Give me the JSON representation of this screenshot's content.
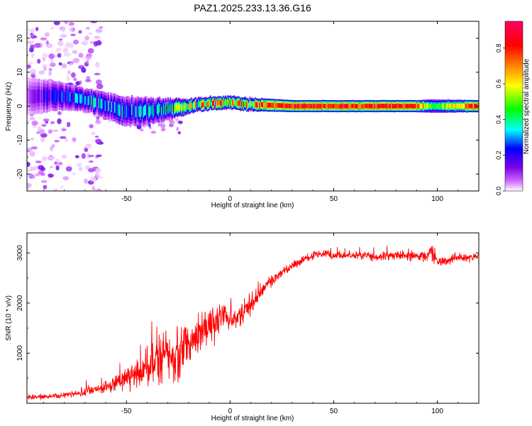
{
  "figure_title": "PAZ1.2025.233.13.36.G16",
  "chart_data": [
    {
      "type": "heatmap",
      "title": "PAZ1.2025.233.13.36.G16",
      "xlabel": "Height of straight line (km)",
      "ylabel": "Frequency (Hz)",
      "xlim": [
        -98,
        120
      ],
      "ylim": [
        -25,
        25
      ],
      "xticks": [
        -50,
        0,
        50,
        100
      ],
      "yticks": [
        -20,
        -10,
        0,
        10,
        20
      ],
      "colorbar": {
        "label": "Normalized spectral amplitude",
        "range": [
          0,
          0.95
        ],
        "ticks": [
          0.0,
          0.2,
          0.4,
          0.6,
          0.8
        ],
        "colormap": [
          "#ffffff",
          "#cc66ff",
          "#7a00e6",
          "#0000ff",
          "#00ffff",
          "#00ff00",
          "#ffff00",
          "#ff8000",
          "#ff0000",
          "#ff0066"
        ]
      },
      "ridge_profile": [
        {
          "x": -98,
          "y": 3.0,
          "amp": 0.15,
          "halfwidth": 2.5
        },
        {
          "x": -85,
          "y": 3.0,
          "amp": 0.3,
          "halfwidth": 2.0
        },
        {
          "x": -70,
          "y": 2.0,
          "amp": 0.4,
          "halfwidth": 1.5
        },
        {
          "x": -60,
          "y": 0.0,
          "amp": 0.4,
          "halfwidth": 1.8
        },
        {
          "x": -50,
          "y": -1.5,
          "amp": 0.4,
          "halfwidth": 2.0
        },
        {
          "x": -40,
          "y": -1.5,
          "amp": 0.42,
          "halfwidth": 1.8
        },
        {
          "x": -30,
          "y": -0.8,
          "amp": 0.5,
          "halfwidth": 1.4
        },
        {
          "x": -20,
          "y": 0.0,
          "amp": 0.6,
          "halfwidth": 1.0
        },
        {
          "x": -10,
          "y": 0.8,
          "amp": 0.75,
          "halfwidth": 0.9
        },
        {
          "x": 0,
          "y": 1.0,
          "amp": 0.85,
          "halfwidth": 0.9
        },
        {
          "x": 10,
          "y": 0.5,
          "amp": 0.75,
          "halfwidth": 0.9
        },
        {
          "x": 30,
          "y": 0.0,
          "amp": 0.85,
          "halfwidth": 0.8
        },
        {
          "x": 60,
          "y": 0.0,
          "amp": 0.85,
          "halfwidth": 0.8
        },
        {
          "x": 90,
          "y": 0.0,
          "amp": 0.8,
          "halfwidth": 0.8
        },
        {
          "x": 97,
          "y": 0.0,
          "amp": 0.5,
          "halfwidth": 0.9
        },
        {
          "x": 120,
          "y": 0.0,
          "amp": 0.85,
          "halfwidth": 0.8
        }
      ],
      "noise_region": {
        "x_range": [
          -98,
          -62
        ],
        "y_range": [
          -25,
          25
        ]
      }
    },
    {
      "type": "line",
      "xlabel": "Height of straight line (km)",
      "ylabel": "SNR (10 * v/v)",
      "xlim": [
        -98,
        120
      ],
      "ylim": [
        0,
        3400
      ],
      "xticks": [
        -50,
        0,
        50,
        100
      ],
      "yticks": [
        1000,
        2000,
        3000
      ],
      "color": "#ff0000",
      "series": [
        {
          "name": "SNR",
          "x": [
            -98,
            -90,
            -80,
            -70,
            -60,
            -50,
            -45,
            -40,
            -35,
            -30,
            -25,
            -20,
            -15,
            -10,
            -5,
            0,
            5,
            10,
            15,
            20,
            25,
            30,
            35,
            40,
            45,
            50,
            55,
            60,
            65,
            70,
            75,
            80,
            85,
            90,
            95,
            97,
            100,
            105,
            110,
            115,
            120
          ],
          "y": [
            120,
            130,
            160,
            220,
            320,
            500,
            600,
            700,
            850,
            950,
            1000,
            1150,
            1350,
            1550,
            1700,
            1700,
            1750,
            1950,
            2250,
            2450,
            2600,
            2750,
            2850,
            2950,
            3000,
            2950,
            2950,
            2950,
            2950,
            2900,
            2950,
            2950,
            2950,
            2950,
            2900,
            3050,
            2850,
            2850,
            2900,
            2900,
            2950
          ],
          "noise_amplitude": [
            60,
            60,
            70,
            100,
            150,
            250,
            350,
            550,
            700,
            700,
            700,
            550,
            450,
            500,
            350,
            350,
            300,
            250,
            200,
            150,
            120,
            100,
            100,
            100,
            100,
            100,
            100,
            100,
            100,
            100,
            100,
            100,
            120,
            120,
            150,
            250,
            150,
            100,
            100,
            100,
            100
          ]
        }
      ]
    }
  ]
}
